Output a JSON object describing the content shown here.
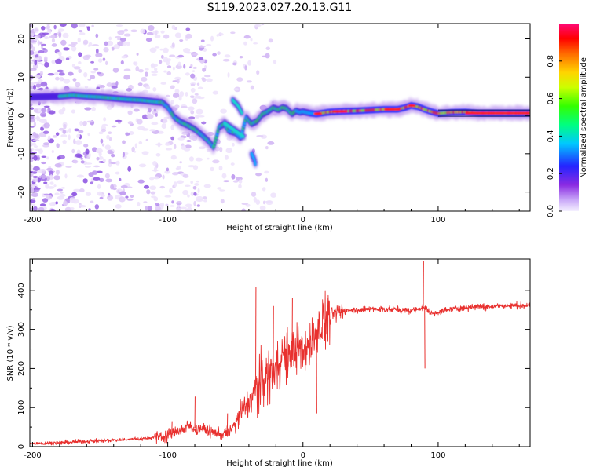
{
  "page": {
    "title": "S119.2023.027.20.13.G11"
  },
  "chart_data": [
    {
      "type": "heatmap",
      "title": "S119.2023.027.20.13.G11",
      "xlabel": "Height of straight line (km)",
      "ylabel": "Frequency (Hz)",
      "xlim": [
        -202,
        168
      ],
      "ylim": [
        -25,
        24
      ],
      "xticks": [
        -200,
        -100,
        0,
        100
      ],
      "yticks": [
        -20,
        -10,
        0,
        10,
        20
      ],
      "colorbar": {
        "label": "Normalized spectral amplitude",
        "range": [
          0,
          1
        ],
        "ticks": [
          "0.0",
          "0.2",
          "0.4",
          "0.6",
          "0.8"
        ],
        "colormap": "rainbow (white → violet → blue → cyan → green → yellow → orange → red → magenta)"
      },
      "ridge": {
        "description": "frequency of the dominant spectral line vs height",
        "x": [
          -202,
          -180,
          -170,
          -160,
          -150,
          -140,
          -130,
          -120,
          -110,
          -104,
          -100,
          -95,
          -90,
          -85,
          -80,
          -75,
          -70,
          -66,
          -62,
          -58,
          -55,
          -50,
          -46,
          -42,
          -38,
          -34,
          -30,
          -26,
          -22,
          -18,
          -15,
          -12,
          -8,
          -5,
          -2,
          0,
          5,
          10,
          20,
          30,
          40,
          50,
          60,
          70,
          75,
          80,
          85,
          90,
          95,
          100,
          110,
          120,
          130,
          140,
          150,
          168
        ],
        "y": [
          4.8,
          5.0,
          5.3,
          5.0,
          4.8,
          4.5,
          4.2,
          4.0,
          3.6,
          3.4,
          2.2,
          -0.5,
          -1.8,
          -2.6,
          -3.6,
          -5.0,
          -6.6,
          -8.3,
          -3.0,
          -2.2,
          -4.0,
          -4.5,
          -5.8,
          -0.5,
          -2.2,
          -1.5,
          0.3,
          1.0,
          2.0,
          1.5,
          2.1,
          1.8,
          0.4,
          1.2,
          0.8,
          1.0,
          0.6,
          0.4,
          0.9,
          1.1,
          1.2,
          1.4,
          1.6,
          1.6,
          2.0,
          2.6,
          2.3,
          1.6,
          1.0,
          0.5,
          0.8,
          0.9,
          0.6,
          0.6,
          0.6,
          0.6
        ]
      },
      "branches": [
        {
          "x": [
            -58,
            -50,
            -44
          ],
          "y": [
            -2.0,
            -4.0,
            -5.5
          ]
        },
        {
          "x": [
            -38,
            -36,
            -35
          ],
          "y": [
            -10.0,
            -11.5,
            -13.0
          ]
        },
        {
          "x": [
            -52,
            -48,
            -45
          ],
          "y": [
            4.0,
            2.5,
            0.5
          ]
        }
      ]
    },
    {
      "type": "line",
      "xlabel": "Height of straight line (km)",
      "ylabel": "SNR (10 * v/v)",
      "xlim": [
        -202,
        168
      ],
      "ylim": [
        0,
        480
      ],
      "xticks": [
        -200,
        -100,
        0,
        100
      ],
      "yticks": [
        0,
        100,
        200,
        300,
        400
      ],
      "color": "#e8302e",
      "baseline": {
        "x": [
          -202,
          -180,
          -160,
          -140,
          -120,
          -110,
          -100,
          -95,
          -90,
          -85,
          -80,
          -75,
          -70,
          -65,
          -60,
          -55,
          -50,
          -45,
          -40,
          -35,
          -30,
          -25,
          -20,
          -15,
          -10,
          -5,
          0,
          5,
          10,
          15,
          20,
          25,
          30,
          40,
          50,
          60,
          70,
          80,
          90,
          95,
          100,
          110,
          120,
          130,
          140,
          150,
          168
        ],
        "y": [
          8,
          10,
          14,
          17,
          20,
          24,
          30,
          36,
          44,
          52,
          48,
          44,
          40,
          36,
          30,
          38,
          60,
          90,
          110,
          150,
          170,
          190,
          210,
          230,
          235,
          250,
          240,
          265,
          300,
          320,
          335,
          342,
          348,
          350,
          352,
          352,
          350,
          348,
          356,
          340,
          345,
          352,
          356,
          358,
          360,
          360,
          362
        ]
      },
      "spikes": [
        {
          "x": -97,
          "y": 65
        },
        {
          "x": -80,
          "y": 128
        },
        {
          "x": -56,
          "y": 85
        },
        {
          "x": -35,
          "y": 408
        },
        {
          "x": -22,
          "y": 360
        },
        {
          "x": -8,
          "y": 380
        },
        {
          "x": 10,
          "y": 85
        },
        {
          "x": 89,
          "y": 475
        },
        {
          "x": 90,
          "y": 200
        }
      ]
    }
  ]
}
